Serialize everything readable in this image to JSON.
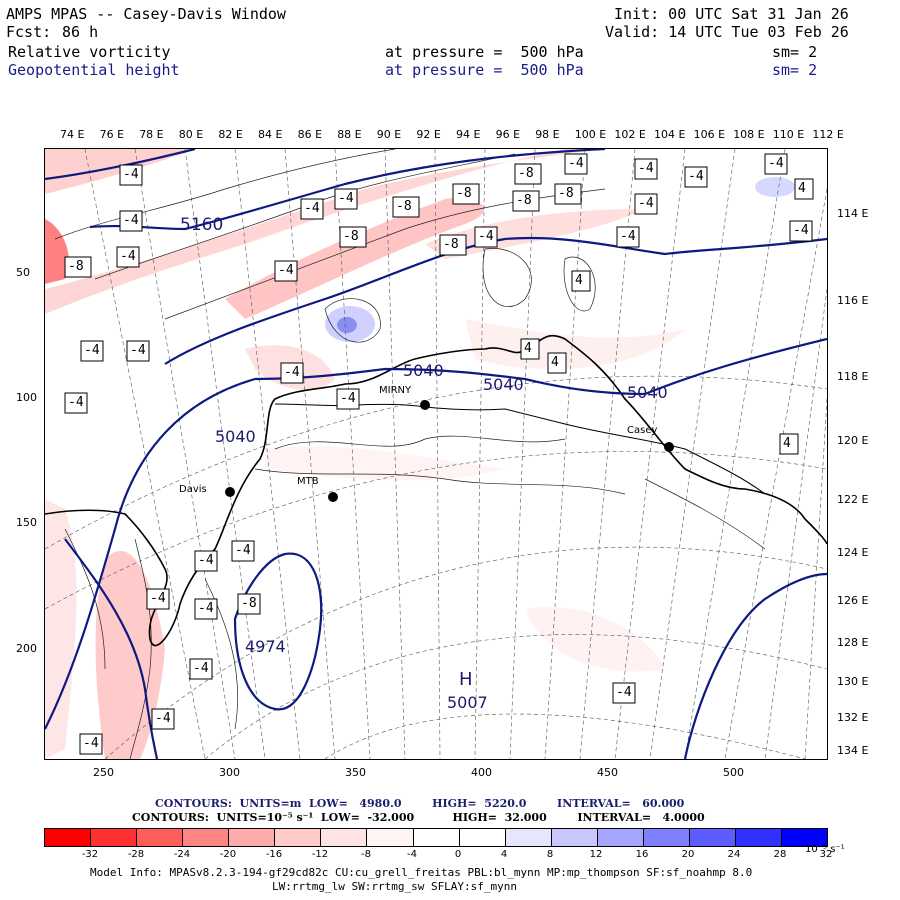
{
  "header": {
    "title": "AMPS MPAS -- Casey-Davis Window",
    "fcst_label": "Fcst:",
    "fcst_value": "86 h",
    "init": "Init: 00 UTC Sat 31 Jan 26",
    "valid": "Valid: 14 UTC Tue 03 Feb 26",
    "field1": "Relative vorticity",
    "field1_level": "at pressure =  500 hPa",
    "field1_sm": "sm= 2",
    "field2": "Geopotential height",
    "field2_level": "at pressure =  500 hPa",
    "field2_sm": "sm= 2"
  },
  "axes": {
    "top_labels": [
      "74 E",
      "76 E",
      "78 E",
      "80 E",
      "82 E",
      "84 E",
      "86 E",
      "88 E",
      "90 E",
      "92 E",
      "94 E",
      "96 E",
      "98 E",
      "100 E",
      "102 E",
      "104 E",
      "106 E",
      "108 E",
      "110 E",
      "112 E"
    ],
    "right_labels": [
      "114 E",
      "116 E",
      "118 E",
      "120 E",
      "122 E",
      "124 E",
      "126 E",
      "128 E",
      "130 E",
      "132 E",
      "134 E"
    ],
    "left_labels": [
      "50",
      "100",
      "150",
      "200"
    ],
    "bottom_labels": [
      "250",
      "300",
      "350",
      "400",
      "450",
      "500"
    ]
  },
  "map": {
    "stations": [
      {
        "name": "Davis"
      },
      {
        "name": "MTB"
      },
      {
        "name": "MIRNY"
      },
      {
        "name": "Casey"
      }
    ],
    "height_labels": [
      "5160",
      "5040",
      "5040",
      "5040",
      "5040",
      "4974",
      "5007"
    ],
    "high_marker": "H",
    "vort_labels": [
      "-4",
      "-8",
      "4"
    ]
  },
  "footer": {
    "contours1": "CONTOURS:  UNITS=m  LOW=   4980.0        HIGH=  5220.0        INTERVAL=   60.000",
    "contours2": "CONTOURS:  UNITS=10⁻⁵ s⁻¹  LOW=  -32.000          HIGH=  32.000        INTERVAL=   4.0000",
    "model_info": "Model Info: MPASv8.2.3-194-gf29cd82c CU:cu_grell_freitas PBL:bl_mynn MP:mp_thompson SF:sf_noahmp 8.0",
    "model_info2": "LW:rrtmg_lw SW:rrtmg_sw SFLAY:sf_mynn",
    "colorbar_labels": [
      "-32",
      "-28",
      "-24",
      "-20",
      "-16",
      "-12",
      "-8",
      "-4",
      "0",
      "4",
      "8",
      "12",
      "16",
      "20",
      "24",
      "28",
      "32"
    ],
    "colorbar_unit": "10⁻⁵ s⁻¹",
    "colorbar_colors": [
      "#ff0000",
      "#ff3030",
      "#ff5c5c",
      "#ff8585",
      "#ffabab",
      "#ffcaca",
      "#ffe3e3",
      "#fff4f4",
      "#ffffff",
      "#ffffff",
      "#e6e6ff",
      "#c8c8ff",
      "#a5a5ff",
      "#8080ff",
      "#5c5cff",
      "#3030ff",
      "#0000ff"
    ]
  }
}
